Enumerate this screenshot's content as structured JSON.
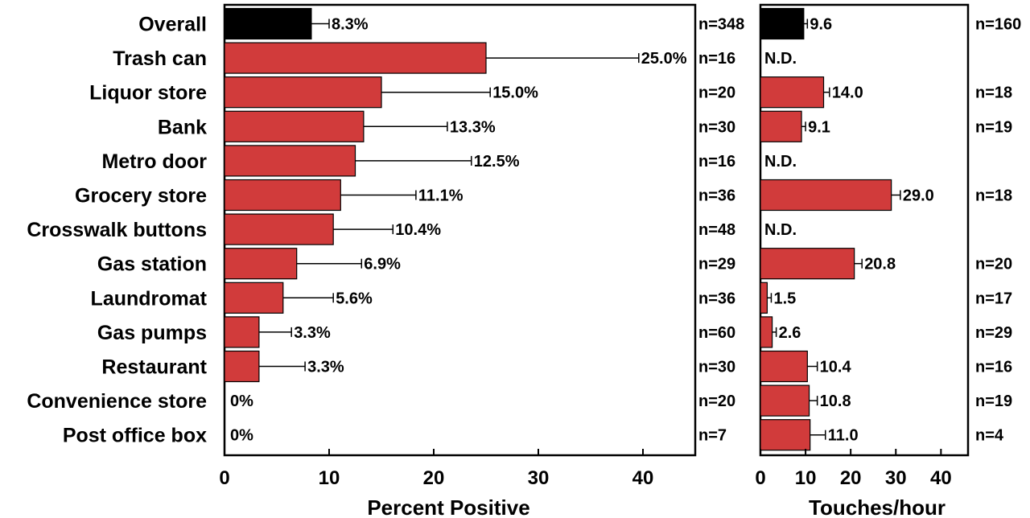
{
  "chart_data": [
    {
      "type": "bar",
      "orientation": "horizontal",
      "categories": [
        "Overall",
        "Trash can",
        "Liquor store",
        "Bank",
        "Metro door",
        "Grocery store",
        "Crosswalk buttons",
        "Gas station",
        "Laundromat",
        "Gas pumps",
        "Restaurant",
        "Convenience store",
        "Post office box"
      ],
      "values": [
        8.3,
        25.0,
        15.0,
        13.3,
        12.5,
        11.1,
        10.4,
        6.9,
        5.6,
        3.3,
        3.3,
        0,
        0
      ],
      "error_upper": [
        10.0,
        39.6,
        25.4,
        21.3,
        23.6,
        18.3,
        16.1,
        13.1,
        10.4,
        6.4,
        7.7,
        0,
        0
      ],
      "value_labels": [
        "8.3%",
        "25.0%",
        "15.0%",
        "13.3%",
        "12.5%",
        "11.1%",
        "10.4%",
        "6.9%",
        "5.6%",
        "3.3%",
        "3.3%",
        "0%",
        "0%"
      ],
      "n_labels": [
        "n=348",
        "n=16",
        "n=20",
        "n=30",
        "n=16",
        "n=36",
        "n=48",
        "n=29",
        "n=36",
        "n=60",
        "n=30",
        "n=20",
        "n=7"
      ],
      "bar_colors": [
        "#000000",
        "#d13b3b",
        "#d13b3b",
        "#d13b3b",
        "#d13b3b",
        "#d13b3b",
        "#d13b3b",
        "#d13b3b",
        "#d13b3b",
        "#d13b3b",
        "#d13b3b",
        "#d13b3b",
        "#d13b3b"
      ],
      "xlabel": "Percent Positive",
      "xlim": [
        0,
        45
      ],
      "xticks": [
        0,
        10,
        20,
        30,
        40
      ],
      "xtick_labels": [
        "0",
        "10",
        "20",
        "30",
        "40"
      ],
      "grid": false
    },
    {
      "type": "bar",
      "orientation": "horizontal",
      "categories": [
        "Overall",
        "Trash can",
        "Liquor store",
        "Bank",
        "Metro door",
        "Grocery store",
        "Crosswalk buttons",
        "Gas station",
        "Laundromat",
        "Gas pumps",
        "Restaurant",
        "Convenience store",
        "Post office box"
      ],
      "values": [
        9.6,
        null,
        14.0,
        9.1,
        null,
        29.0,
        null,
        20.8,
        1.5,
        2.6,
        10.4,
        10.8,
        11.0
      ],
      "error_upper": [
        10.4,
        null,
        15.3,
        10.0,
        null,
        31.0,
        null,
        22.5,
        2.4,
        3.5,
        12.6,
        12.6,
        14.4
      ],
      "value_labels": [
        "9.6",
        "N.D.",
        "14.0",
        "9.1",
        "N.D.",
        "29.0",
        "N.D.",
        "20.8",
        "1.5",
        "2.6",
        "10.4",
        "10.8",
        "11.0"
      ],
      "n_labels": [
        "n=160",
        "",
        "n=18",
        "n=19",
        "",
        "n=18",
        "",
        "n=20",
        "n=17",
        "n=29",
        "n=16",
        "n=19",
        "n=4"
      ],
      "bar_colors": [
        "#000000",
        "#d13b3b",
        "#d13b3b",
        "#d13b3b",
        "#d13b3b",
        "#d13b3b",
        "#d13b3b",
        "#d13b3b",
        "#d13b3b",
        "#d13b3b",
        "#d13b3b",
        "#d13b3b",
        "#d13b3b"
      ],
      "xlabel": "Touches/hour",
      "xlim": [
        0,
        46
      ],
      "xticks": [
        0,
        10,
        20,
        30,
        40
      ],
      "xtick_labels": [
        "0",
        "10",
        "20",
        "30",
        "40"
      ],
      "grid": false
    }
  ]
}
